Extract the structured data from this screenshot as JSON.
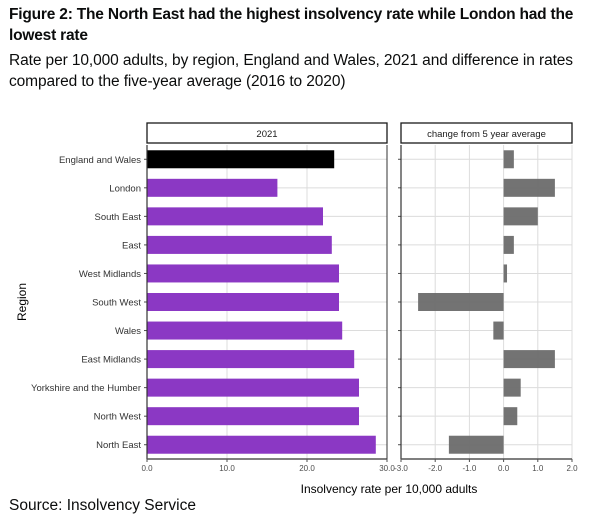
{
  "header": {
    "title": "Figure 2: The North East had the highest insolvency rate while London had the lowest rate",
    "subtitle": "Rate per 10,000 adults, by region, England and Wales, 2021 and difference in rates compared to the five-year average (2016 to 2020)"
  },
  "footer": {
    "source": "Source: Insolvency Service"
  },
  "colors": {
    "highlight_bar": "#000000",
    "region_bar": "#8b38c4",
    "change_bar": "#6b6b6b",
    "grid": "#dcdcdc",
    "axis": "#4d4d4d"
  },
  "chart_data": {
    "type": "bar",
    "orientation": "horizontal",
    "ylabel": "Region",
    "xlabel": "Insolvency rate per 10,000 adults",
    "categories": [
      "England and Wales",
      "London",
      "South East",
      "East",
      "West Midlands",
      "South West",
      "Wales",
      "East Midlands",
      "Yorkshire and the Humber",
      "North West",
      "North East"
    ],
    "panels": [
      {
        "title": "2021",
        "xlim": [
          0,
          30
        ],
        "ticks": [
          0,
          10,
          20,
          30
        ],
        "tick_labels": [
          "0.0",
          "10.0",
          "20.0",
          "30.0"
        ],
        "values": [
          23.4,
          16.3,
          22.0,
          23.1,
          24.0,
          24.0,
          24.4,
          25.9,
          26.5,
          26.5,
          28.6
        ]
      },
      {
        "title": "change from 5 year average",
        "xlim": [
          -3,
          2
        ],
        "ticks": [
          -3,
          -2,
          -1,
          0,
          1,
          2
        ],
        "tick_labels": [
          "-3.0",
          "-2.0",
          "-1.0",
          "0.0",
          "1.0",
          "2.0"
        ],
        "values": [
          0.3,
          1.5,
          1.0,
          0.3,
          0.1,
          -2.5,
          -0.3,
          1.5,
          0.5,
          0.4,
          -1.6
        ]
      }
    ],
    "grid": true,
    "legend": "none"
  }
}
